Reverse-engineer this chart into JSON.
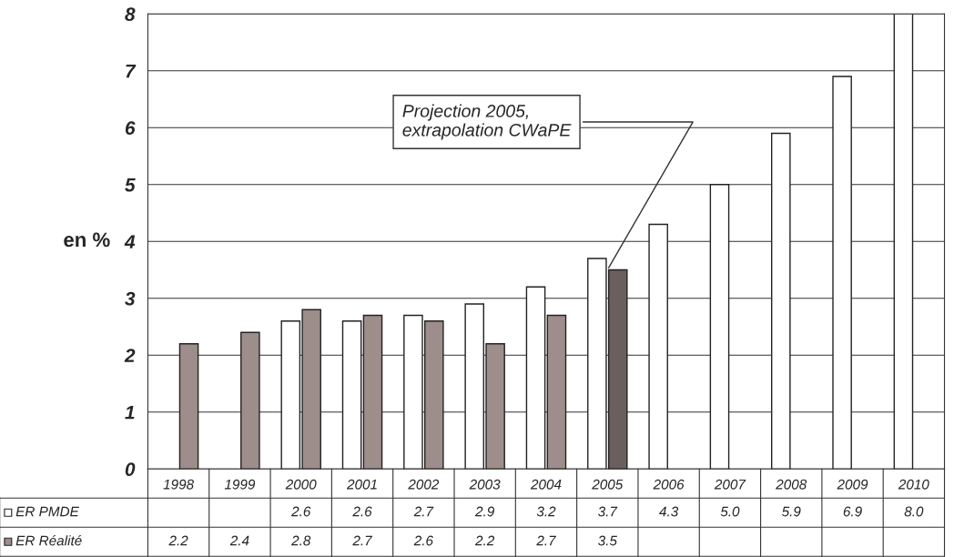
{
  "chart_data": {
    "type": "bar",
    "ylabel": "en %",
    "categories": [
      "1998",
      "1999",
      "2000",
      "2001",
      "2002",
      "2003",
      "2004",
      "2005",
      "2006",
      "2007",
      "2008",
      "2009",
      "2010"
    ],
    "series": [
      {
        "name": "ER PMDE",
        "color": "#ffffff",
        "values": [
          null,
          null,
          2.6,
          2.6,
          2.7,
          2.9,
          3.2,
          3.7,
          4.3,
          5.0,
          5.9,
          6.9,
          8.0
        ],
        "value_labels": [
          null,
          null,
          "2.6",
          "2.6",
          "2.7",
          "2.9",
          "3.2",
          "3.7",
          "4.3",
          "5.0",
          "5.9",
          "6.9",
          "8.0"
        ]
      },
      {
        "name": "ER Réalité",
        "color": "#9e8e8b",
        "colors": [
          "#9e8e8b",
          "#9e8e8b",
          "#9e8e8b",
          "#9e8e8b",
          "#9e8e8b",
          "#9e8e8b",
          "#9e8e8b",
          "#6b5f5d",
          null,
          null,
          null,
          null,
          null
        ],
        "values": [
          2.2,
          2.4,
          2.8,
          2.7,
          2.6,
          2.2,
          2.7,
          3.5,
          null,
          null,
          null,
          null,
          null
        ],
        "value_labels": [
          "2.2",
          "2.4",
          "2.8",
          "2.7",
          "2.6",
          "2.2",
          "2.7",
          "3.5",
          null,
          null,
          null,
          null,
          null
        ]
      }
    ],
    "annotations": [
      {
        "text": "Projection 2005,\nextrapolation CWaPE",
        "x": "2005",
        "y": 3.5
      }
    ],
    "ylim": [
      0,
      8
    ],
    "yticks": [
      0,
      1,
      2,
      3,
      4,
      5,
      6,
      7,
      8
    ],
    "grid": "y",
    "legend": "bottom left"
  }
}
